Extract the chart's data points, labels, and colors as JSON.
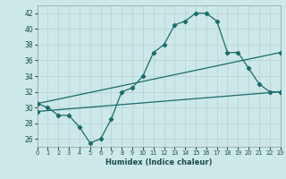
{
  "xlabel": "Humidex (Indice chaleur)",
  "background_color": "#cde8e8",
  "grid_color": "#b8d4d4",
  "line_color": "#1a6b6b",
  "xlim": [
    0,
    23
  ],
  "ylim": [
    25,
    43
  ],
  "yticks": [
    26,
    28,
    30,
    32,
    34,
    36,
    38,
    40,
    42
  ],
  "xticks": [
    0,
    1,
    2,
    3,
    4,
    5,
    6,
    7,
    8,
    9,
    10,
    11,
    12,
    13,
    14,
    15,
    16,
    17,
    18,
    19,
    20,
    21,
    22,
    23
  ],
  "line1_x": [
    0,
    1,
    2,
    3,
    4,
    5,
    6,
    7,
    8,
    9,
    10,
    11,
    12,
    13,
    14,
    15,
    16,
    17,
    18,
    19,
    20,
    21,
    22,
    23
  ],
  "line1_y": [
    30.5,
    30.0,
    29.0,
    29.0,
    27.5,
    25.5,
    26.0,
    28.5,
    32.0,
    32.5,
    34.0,
    37.0,
    38.0,
    40.5,
    41.0,
    42.0,
    42.0,
    41.0,
    37.0,
    37.0,
    35.0,
    33.0,
    32.0,
    32.0
  ],
  "line2_x": [
    0,
    23
  ],
  "line2_y": [
    30.5,
    37.0
  ],
  "line3_x": [
    0,
    23
  ],
  "line3_y": [
    29.5,
    32.0
  ]
}
